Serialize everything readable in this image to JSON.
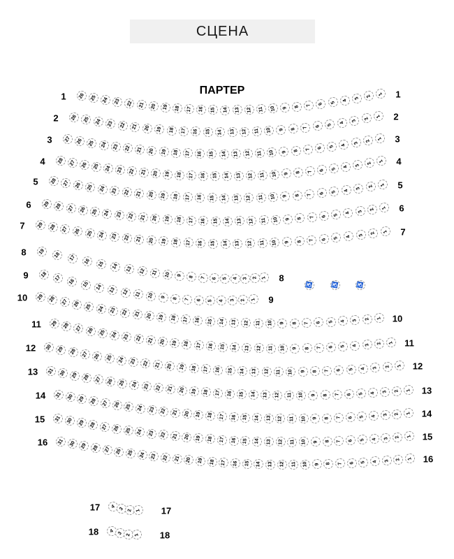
{
  "stage": {
    "label": "СЦЕНА"
  },
  "section": {
    "label": "ПАРТЕР"
  },
  "colors": {
    "stage_bg": "#f0f0f0",
    "seat_outline": "#999999",
    "seat_number": "#000000",
    "row_label": "#000000"
  },
  "rows": [
    {
      "number": "1",
      "seats": [
        26,
        25,
        24,
        23,
        22,
        21,
        20,
        19,
        18,
        17,
        16,
        15,
        14,
        13,
        12,
        11,
        10,
        9,
        8,
        7,
        6,
        5,
        4,
        3,
        2,
        1
      ]
    },
    {
      "number": "2",
      "seats": [
        26,
        25,
        24,
        23,
        22,
        21,
        20,
        19,
        18,
        17,
        16,
        15,
        14,
        13,
        12,
        11,
        10,
        9,
        8,
        7,
        6,
        5,
        4,
        3,
        2,
        1
      ]
    },
    {
      "number": "3",
      "seats": [
        27,
        26,
        25,
        24,
        23,
        22,
        21,
        20,
        19,
        18,
        17,
        16,
        15,
        14,
        13,
        12,
        11,
        10,
        9,
        8,
        7,
        6,
        5,
        4,
        3,
        2,
        1
      ]
    },
    {
      "number": "4",
      "seats": [
        28,
        27,
        26,
        25,
        24,
        23,
        22,
        21,
        20,
        19,
        18,
        17,
        16,
        15,
        14,
        13,
        12,
        11,
        10,
        9,
        8,
        7,
        6,
        5,
        4,
        3,
        2,
        1
      ]
    },
    {
      "number": "5",
      "seats": [
        28,
        27,
        26,
        25,
        24,
        23,
        22,
        21,
        20,
        19,
        18,
        17,
        16,
        15,
        14,
        13,
        12,
        11,
        10,
        9,
        8,
        7,
        6,
        5,
        4,
        3,
        2,
        1
      ]
    },
    {
      "number": "6",
      "seats": [
        29,
        28,
        27,
        26,
        25,
        24,
        23,
        22,
        21,
        20,
        19,
        18,
        17,
        16,
        15,
        14,
        13,
        12,
        11,
        10,
        9,
        8,
        7,
        6,
        5,
        4,
        3,
        2,
        1
      ]
    },
    {
      "number": "7",
      "seats": [
        29,
        28,
        27,
        26,
        25,
        24,
        23,
        22,
        21,
        20,
        19,
        18,
        17,
        16,
        15,
        14,
        13,
        12,
        11,
        10,
        9,
        8,
        7,
        6,
        5,
        4,
        3,
        2,
        1
      ]
    },
    {
      "number": "8",
      "seats": [
        19,
        18,
        17,
        16,
        15,
        14,
        13,
        12,
        11,
        10,
        9,
        8,
        7,
        6,
        5,
        4,
        3,
        2,
        1
      ]
    },
    {
      "number": "9",
      "seats": [
        18,
        17,
        16,
        15,
        14,
        13,
        12,
        11,
        10,
        9,
        8,
        7,
        6,
        5,
        4,
        3,
        2,
        1
      ]
    },
    {
      "number": "10",
      "seats": [
        29,
        28,
        27,
        26,
        25,
        24,
        23,
        22,
        21,
        20,
        19,
        18,
        17,
        16,
        15,
        14,
        13,
        12,
        11,
        10,
        9,
        8,
        7,
        6,
        5,
        4,
        3,
        2,
        1
      ]
    },
    {
      "number": "11",
      "seats": [
        29,
        28,
        27,
        26,
        25,
        24,
        23,
        22,
        21,
        20,
        19,
        18,
        17,
        16,
        15,
        14,
        13,
        12,
        11,
        10,
        9,
        8,
        7,
        6,
        5,
        4,
        3,
        2,
        1
      ]
    },
    {
      "number": "12",
      "seats": [
        30,
        29,
        28,
        27,
        26,
        25,
        24,
        23,
        22,
        21,
        20,
        19,
        18,
        17,
        16,
        15,
        14,
        13,
        12,
        11,
        10,
        9,
        8,
        7,
        6,
        5,
        4,
        3,
        2,
        1
      ]
    },
    {
      "number": "13",
      "seats": [
        31,
        30,
        29,
        28,
        27,
        26,
        25,
        24,
        23,
        22,
        21,
        20,
        19,
        18,
        17,
        16,
        15,
        14,
        13,
        12,
        11,
        10,
        9,
        8,
        7,
        6,
        5,
        4,
        3,
        2,
        1
      ]
    },
    {
      "number": "14",
      "seats": [
        31,
        30,
        29,
        28,
        27,
        26,
        25,
        24,
        23,
        22,
        21,
        20,
        19,
        18,
        17,
        16,
        15,
        14,
        13,
        12,
        11,
        10,
        9,
        8,
        7,
        6,
        5,
        4,
        3,
        2,
        1
      ]
    },
    {
      "number": "15",
      "seats": [
        31,
        30,
        29,
        28,
        27,
        26,
        25,
        24,
        23,
        22,
        21,
        20,
        19,
        18,
        17,
        16,
        15,
        14,
        13,
        12,
        11,
        10,
        9,
        8,
        7,
        6,
        5,
        4,
        3,
        2,
        1
      ]
    },
    {
      "number": "16",
      "seats": [
        31,
        30,
        29,
        28,
        27,
        26,
        25,
        24,
        23,
        22,
        21,
        20,
        19,
        18,
        17,
        16,
        15,
        14,
        13,
        12,
        11,
        10,
        9,
        8,
        7,
        6,
        5,
        4,
        3,
        2,
        1
      ]
    },
    {
      "number": "17",
      "seats": [
        4,
        3,
        2,
        1
      ]
    },
    {
      "number": "18",
      "seats": [
        4,
        3,
        2,
        1
      ]
    }
  ],
  "wheelchair_spots": {
    "symbol": "♿",
    "count": 3
  }
}
